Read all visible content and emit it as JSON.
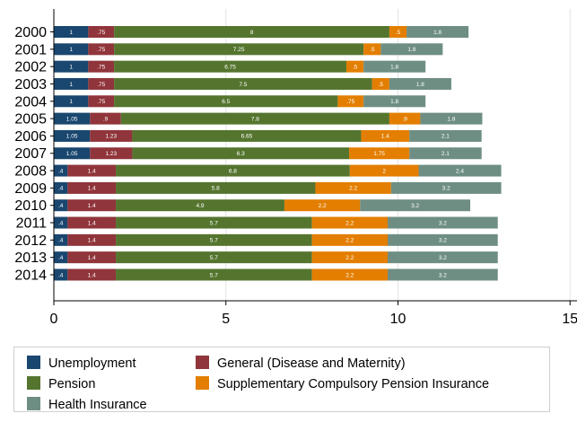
{
  "chart_data": {
    "type": "bar",
    "orientation": "horizontal",
    "stacked": true,
    "categories": [
      "2000",
      "2001",
      "2002",
      "2003",
      "2004",
      "2005",
      "2006",
      "2007",
      "2008",
      "2009",
      "2010",
      "2011",
      "2012",
      "2013",
      "2014"
    ],
    "series": [
      {
        "name": "Unemployment",
        "color": "#1a476f",
        "values": [
          1,
          1,
          1,
          1,
          1,
          1.05,
          1.05,
          1.05,
          0.4,
          0.4,
          0.4,
          0.4,
          0.4,
          0.4,
          0.4
        ],
        "labels": [
          "1",
          "1",
          "1",
          "1",
          "1",
          "1.05",
          "1.05",
          "1.05",
          ".4",
          ".4",
          ".4",
          ".4",
          ".4",
          ".4",
          ".4"
        ]
      },
      {
        "name": "General (Disease and Maternity)",
        "color": "#90353b",
        "values": [
          0.75,
          0.75,
          0.75,
          0.75,
          0.75,
          0.9,
          1.23,
          1.23,
          1.4,
          1.4,
          1.4,
          1.4,
          1.4,
          1.4,
          1.4
        ],
        "labels": [
          ".75",
          ".75",
          ".75",
          ".75",
          ".75",
          ".9",
          "1.23",
          "1.23",
          "1.4",
          "1.4",
          "1.4",
          "1.4",
          "1.4",
          "1.4",
          "1.4"
        ]
      },
      {
        "name": "Pension",
        "color": "#55752f",
        "values": [
          8,
          7.25,
          6.75,
          7.5,
          6.5,
          7.8,
          6.65,
          6.3,
          6.8,
          5.8,
          4.9,
          5.7,
          5.7,
          5.7,
          5.7
        ],
        "labels": [
          "8",
          "7.25",
          "6.75",
          "7.5",
          "6.5",
          "7.8",
          "6.65",
          "6.3",
          "6.8",
          "5.8",
          "4.9",
          "5.7",
          "5.7",
          "5.7",
          "5.7"
        ]
      },
      {
        "name": "Supplementary Compulsory Pension Insurance",
        "color": "#e37e00",
        "values": [
          0.5,
          0.5,
          0.5,
          0.5,
          0.75,
          0.9,
          1.4,
          1.75,
          2,
          2.2,
          2.2,
          2.2,
          2.2,
          2.2,
          2.2
        ],
        "labels": [
          ".5",
          ".5",
          ".5",
          ".5",
          ".75",
          ".9",
          "1.4",
          "1.75",
          "2",
          "2.2",
          "2.2",
          "2.2",
          "2.2",
          "2.2",
          "2.2"
        ]
      },
      {
        "name": "Health Insurance",
        "color": "#6e8e84",
        "values": [
          1.8,
          1.8,
          1.8,
          1.8,
          1.8,
          1.8,
          2.1,
          2.1,
          2.4,
          3.2,
          3.2,
          3.2,
          3.2,
          3.2,
          3.2
        ],
        "labels": [
          "1.8",
          "1.8",
          "1.8",
          "1.8",
          "1.8",
          "1.8",
          "2.1",
          "2.1",
          "2.4",
          "3.2",
          "3.2",
          "3.2",
          "3.2",
          "3.2",
          "3.2"
        ]
      }
    ],
    "xlim": [
      0,
      15
    ],
    "xticks": [
      0,
      5,
      10,
      15
    ],
    "grid": true,
    "legend_position": "bottom",
    "title": "",
    "xlabel": "",
    "ylabel": ""
  }
}
